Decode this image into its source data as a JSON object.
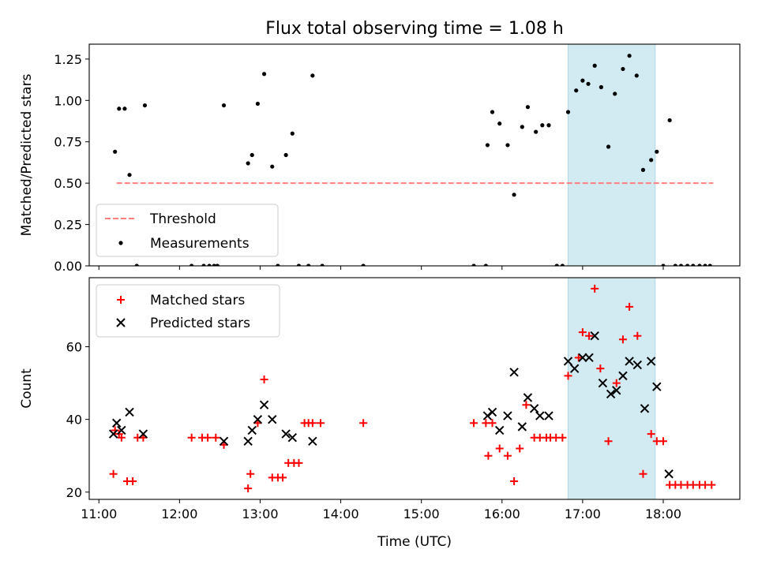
{
  "chart_data": [
    {
      "type": "scatter",
      "title": "Flux total observing time = 1.08 h",
      "xlabel": "",
      "ylabel": "Matched/Predicted stars",
      "xlim": [
        10.88,
        18.95
      ],
      "ylim": [
        0,
        1.34
      ],
      "x_ticks": [
        11,
        12,
        13,
        14,
        15,
        16,
        17,
        18
      ],
      "y_ticks": [
        0.0,
        0.25,
        0.5,
        0.75,
        1.0,
        1.25
      ],
      "y_tick_labels": [
        "0.00",
        "0.25",
        "0.50",
        "0.75",
        "1.00",
        "1.25"
      ],
      "highlight_span": [
        16.82,
        17.9
      ],
      "highlight_color": "#add8e6",
      "legend_position": "lower left",
      "threshold": {
        "name": "Threshold",
        "value": 0.5,
        "x_range": [
          11.22,
          18.62
        ],
        "color": "#ff7f7f",
        "style": "dashed"
      },
      "series": [
        {
          "name": "Measurements",
          "color": "#000000",
          "x": [
            11.2,
            11.25,
            11.32,
            11.38,
            11.47,
            11.57,
            12.15,
            12.3,
            12.37,
            12.43,
            12.47,
            12.55,
            12.85,
            12.9,
            12.97,
            13.05,
            13.15,
            13.22,
            13.32,
            13.4,
            13.48,
            13.6,
            13.65,
            13.77,
            14.28,
            15.65,
            15.8,
            15.82,
            15.88,
            15.97,
            16.07,
            16.15,
            16.25,
            16.32,
            16.42,
            16.5,
            16.58,
            16.68,
            16.75,
            16.82,
            16.92,
            17.0,
            17.07,
            17.15,
            17.23,
            17.32,
            17.4,
            17.5,
            17.58,
            17.67,
            17.75,
            17.85,
            17.92,
            18.0,
            18.08,
            18.15,
            18.22,
            18.3,
            18.37,
            18.45,
            18.52,
            18.58
          ],
          "y": [
            0.69,
            0.95,
            0.95,
            0.55,
            0.0,
            0.97,
            0.0,
            0.0,
            0.0,
            0.0,
            0.0,
            0.97,
            0.62,
            0.67,
            0.98,
            1.16,
            0.6,
            0.0,
            0.67,
            0.8,
            0.0,
            0.0,
            1.15,
            0.0,
            0.0,
            0.0,
            0.0,
            0.73,
            0.93,
            0.86,
            0.73,
            0.43,
            0.84,
            0.96,
            0.81,
            0.85,
            0.85,
            0.0,
            0.0,
            0.93,
            1.06,
            1.12,
            1.1,
            1.21,
            1.08,
            0.72,
            1.04,
            1.19,
            1.27,
            1.15,
            0.58,
            0.64,
            0.69,
            0.0,
            0.88,
            0.0,
            0.0,
            0.0,
            0.0,
            0.0,
            0.0,
            0.0
          ]
        }
      ]
    },
    {
      "type": "scatter",
      "title": "",
      "xlabel": "Time (UTC)",
      "ylabel": "Count",
      "xlim": [
        10.88,
        18.95
      ],
      "ylim": [
        18,
        79
      ],
      "x_ticks": [
        11,
        12,
        13,
        14,
        15,
        16,
        17,
        18
      ],
      "x_tick_labels": [
        "11:00",
        "12:00",
        "13:00",
        "14:00",
        "15:00",
        "16:00",
        "17:00",
        "18:00"
      ],
      "y_ticks": [
        20,
        40,
        60
      ],
      "y_tick_labels": [
        "20",
        "40",
        "60"
      ],
      "highlight_span": [
        16.82,
        17.9
      ],
      "highlight_color": "#add8e6",
      "legend_position": "upper left",
      "series": [
        {
          "name": "Matched stars",
          "marker": "plus",
          "color": "#ff0000",
          "x": [
            11.18,
            11.2,
            11.25,
            11.28,
            11.35,
            11.42,
            11.48,
            11.55,
            12.15,
            12.28,
            12.35,
            12.45,
            12.55,
            12.85,
            12.88,
            12.97,
            13.05,
            13.15,
            13.22,
            13.28,
            13.35,
            13.42,
            13.48,
            13.55,
            13.6,
            13.65,
            13.75,
            14.28,
            15.65,
            15.8,
            15.83,
            15.88,
            15.97,
            16.07,
            16.15,
            16.22,
            16.3,
            16.4,
            16.47,
            16.55,
            16.6,
            16.67,
            16.75,
            16.82,
            16.95,
            17.0,
            17.08,
            17.15,
            17.22,
            17.32,
            17.42,
            17.5,
            17.58,
            17.68,
            17.75,
            17.85,
            17.92,
            18.0,
            18.08,
            18.15,
            18.22,
            18.3,
            18.37,
            18.45,
            18.52,
            18.6
          ],
          "y": [
            25,
            37,
            36,
            35,
            23,
            23,
            35,
            35,
            35,
            35,
            35,
            35,
            33,
            21,
            25,
            39,
            51,
            24,
            24,
            24,
            28,
            28,
            28,
            39,
            39,
            39,
            39,
            39,
            39,
            39,
            30,
            39,
            32,
            30,
            23,
            32,
            44,
            35,
            35,
            35,
            35,
            35,
            35,
            52,
            57,
            64,
            63,
            76,
            54,
            34,
            50,
            62,
            71,
            63,
            25,
            36,
            34,
            34,
            22,
            22,
            22,
            22,
            22,
            22,
            22,
            22
          ]
        },
        {
          "name": "Predicted stars",
          "marker": "x",
          "color": "#000000",
          "x": [
            11.18,
            11.22,
            11.28,
            11.38,
            11.55,
            12.55,
            12.85,
            12.9,
            12.97,
            13.05,
            13.15,
            13.32,
            13.4,
            13.65,
            15.82,
            15.88,
            15.97,
            16.07,
            16.15,
            16.25,
            16.32,
            16.4,
            16.47,
            16.58,
            16.82,
            16.9,
            17.0,
            17.08,
            17.15,
            17.25,
            17.35,
            17.42,
            17.5,
            17.58,
            17.68,
            17.77,
            17.85,
            17.92,
            18.07
          ],
          "y": [
            36,
            39,
            37,
            42,
            36,
            34,
            34,
            37,
            40,
            44,
            40,
            36,
            35,
            34,
            41,
            42,
            37,
            41,
            53,
            38,
            46,
            43,
            41,
            41,
            56,
            54,
            57,
            57,
            63,
            50,
            47,
            48,
            52,
            56,
            55,
            43,
            56,
            49,
            25
          ]
        }
      ]
    }
  ]
}
